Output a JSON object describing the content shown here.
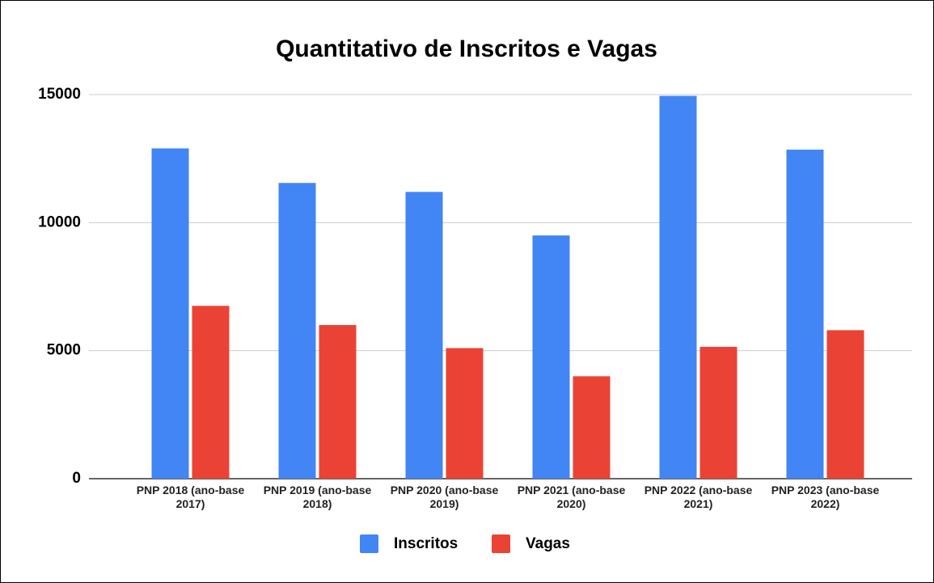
{
  "chart_data": {
    "type": "bar",
    "title": "Quantitativo de Inscritos e Vagas",
    "categories": [
      "PNP 2018 (ano-base 2017)",
      "PNP 2019 (ano-base 2018)",
      "PNP 2020 (ano-base 2019)",
      "PNP 2021 (ano-base 2020)",
      "PNP 2022 (ano-base 2021)",
      "PNP 2023 (ano-base 2022)"
    ],
    "series": [
      {
        "name": "Inscritos",
        "color": "#4285f4",
        "values": [
          12900,
          11550,
          11200,
          9500,
          14950,
          12850
        ]
      },
      {
        "name": "Vagas",
        "color": "#ea4335",
        "values": [
          6750,
          6000,
          5100,
          4000,
          5150,
          5800
        ]
      }
    ],
    "ylim": [
      0,
      15000
    ],
    "yticks": [
      0,
      5000,
      10000,
      15000
    ],
    "grid": true,
    "legend": "bottom"
  }
}
